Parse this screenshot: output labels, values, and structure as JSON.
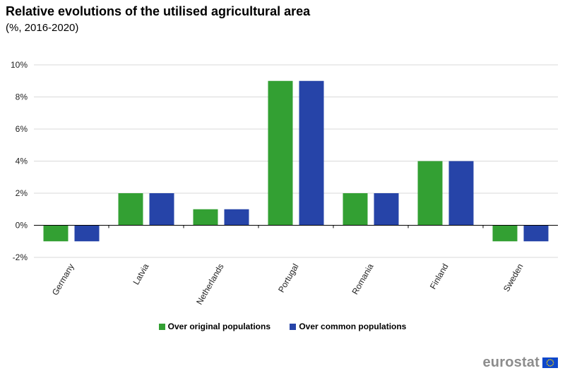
{
  "header": {
    "title": "Relative evolutions of the utilised agricultural area",
    "subtitle": "(%, 2016-2020)"
  },
  "chart_data": {
    "type": "bar",
    "title": "Relative evolutions of the utilised agricultural area",
    "subtitle": "(%, 2016-2020)",
    "xlabel": "",
    "ylabel": "",
    "categories": [
      "Germany",
      "Latvia",
      "Netherlands",
      "Portugal",
      "Romania",
      "Finland",
      "Sweden"
    ],
    "series": [
      {
        "name": "Over original populations",
        "color": "#33a033",
        "values": [
          -1,
          2,
          1,
          9,
          2,
          4,
          -1
        ]
      },
      {
        "name": "Over common populations",
        "color": "#2644a8",
        "values": [
          -1,
          2,
          1,
          9,
          2,
          4,
          -1
        ]
      }
    ],
    "ylim": [
      -2,
      10
    ],
    "yticks": [
      -2,
      0,
      2,
      4,
      6,
      8,
      10
    ],
    "ytick_labels": [
      "-2%",
      "0%",
      "2%",
      "4%",
      "6%",
      "8%",
      "10%"
    ],
    "grid": true,
    "legend_position": "bottom"
  },
  "branding": {
    "logo_text": "eurostat",
    "flag_color": "#0e47cb",
    "star_color": "#ffdd00"
  }
}
